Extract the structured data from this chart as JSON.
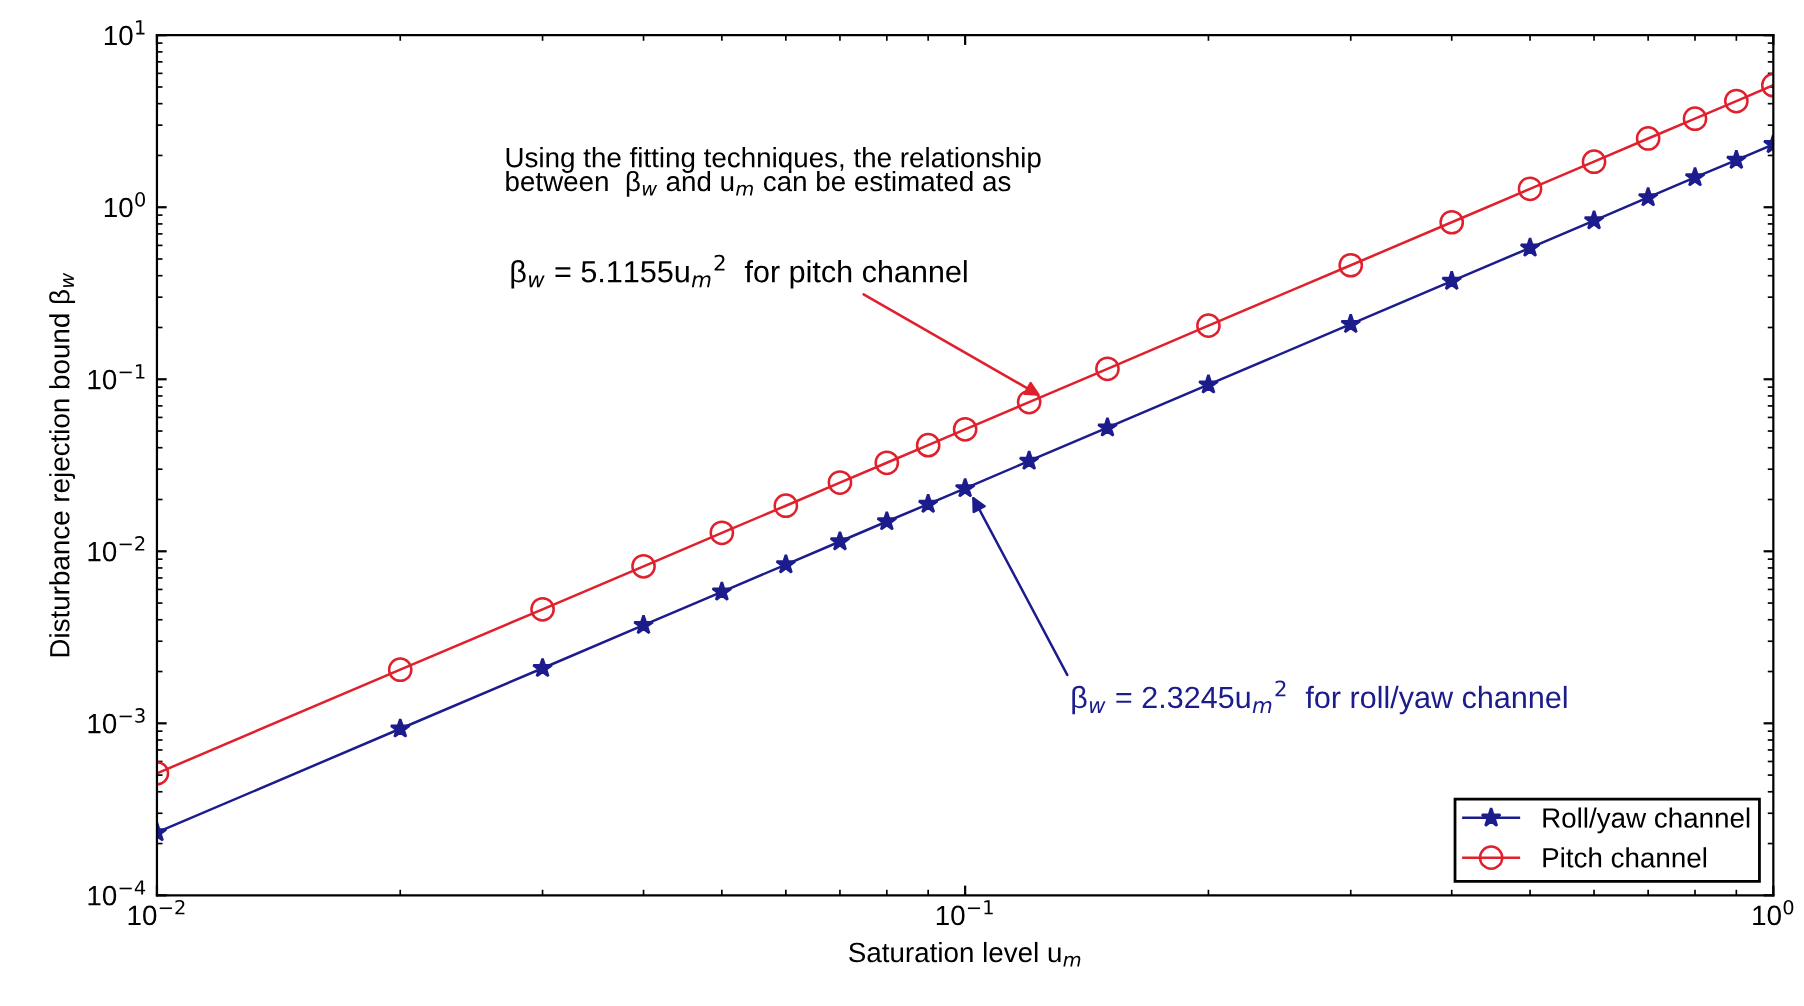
{
  "chart_data": {
    "type": "line",
    "xlabel": "Saturation level u$_{m}$",
    "ylabel": "Disturbance rejection bound β$_{w}$",
    "x": [
      0.01,
      0.02,
      0.03,
      0.04,
      0.05,
      0.06,
      0.07,
      0.08,
      0.09,
      0.1,
      0.12,
      0.15,
      0.2,
      0.3,
      0.4,
      0.5,
      0.6,
      0.7,
      0.8,
      0.9,
      1.0
    ],
    "series": [
      {
        "name": "Roll/yaw channel",
        "color": "#1c1c8c",
        "marker": "star",
        "values": [
          0.000232,
          0.00093,
          0.00209,
          0.00372,
          0.00581,
          0.00837,
          0.0114,
          0.0149,
          0.0188,
          0.0232,
          0.0335,
          0.0523,
          0.093,
          0.209,
          0.372,
          0.581,
          0.837,
          1.14,
          1.49,
          1.88,
          2.32
        ]
      },
      {
        "name": "Pitch channel",
        "color": "#e0202c",
        "marker": "circle",
        "values": [
          0.000512,
          0.00205,
          0.0046,
          0.00818,
          0.0128,
          0.0184,
          0.0251,
          0.0327,
          0.0414,
          0.0512,
          0.0737,
          0.115,
          0.205,
          0.46,
          0.818,
          1.28,
          1.84,
          2.51,
          3.27,
          4.14,
          5.12
        ]
      }
    ],
    "log": "xy",
    "xlim": [
      0.01,
      1
    ],
    "ylim": [
      0.0001,
      10
    ],
    "xticks": [
      {
        "value": 0.01,
        "label": "10$^{−2}$"
      },
      {
        "value": 0.1,
        "label": "10$^{−1}$"
      },
      {
        "value": 1,
        "label": "10$^{0}$"
      }
    ],
    "yticks": [
      {
        "value": 0.0001,
        "label": "10$^{−4}$"
      },
      {
        "value": 0.001,
        "label": "10$^{−3}$"
      },
      {
        "value": 0.01,
        "label": "10$^{−2}$"
      },
      {
        "value": 0.1,
        "label": "10$^{−1}$"
      },
      {
        "value": 1,
        "label": "10$^{0}$"
      },
      {
        "value": 10,
        "label": "10$^{1}$"
      }
    ],
    "annotations": [
      "Using the fitting techniques, the relationship\nbetween  β$_{w}$ and u$_{m}$ can be estimated as",
      {
        "text": "β$_{w}$ = 5.1155u$_{m}$$^{2}$  for pitch channel",
        "x": 0.124,
        "y": 0.08
      },
      {
        "text": "β$_{w}$ = 2.3245u$_{m}$$^{2}$  for roll/yaw channel",
        "x": 0.102,
        "y": 0.021
      }
    ],
    "grid": false,
    "legend": "bottom right",
    "line_style": "solid"
  }
}
